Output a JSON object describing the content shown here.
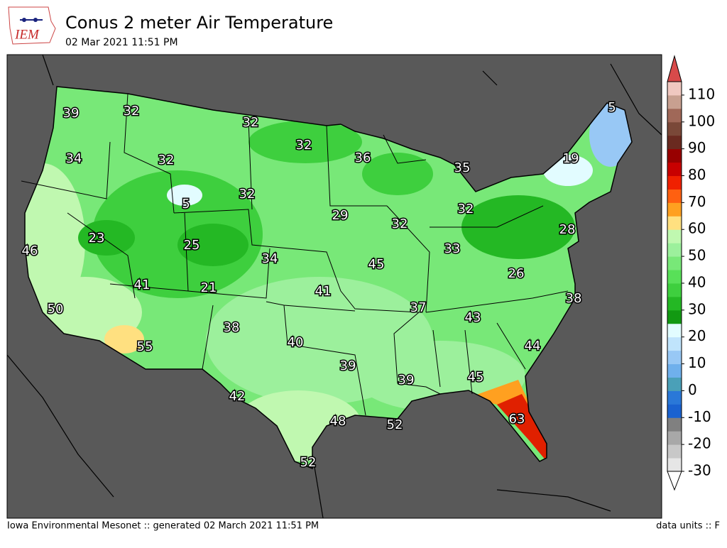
{
  "header": {
    "logo": "IEM",
    "title": "Conus 2 meter Air Temperature",
    "subtitle": "02 Mar 2021 11:51 PM"
  },
  "map": {
    "labels": [
      39,
      32,
      32,
      32,
      36,
      5,
      34,
      32,
      5,
      32,
      19,
      35,
      29,
      32,
      32,
      23,
      25,
      46,
      34,
      33,
      28,
      45,
      41,
      21,
      41,
      26,
      38,
      50,
      37,
      43,
      55,
      38,
      40,
      44,
      39,
      39,
      45,
      42,
      63,
      48,
      52,
      52
    ]
  },
  "colorbar": {
    "lim": [
      -30,
      115
    ],
    "step": 5,
    "ticks": [
      -30,
      -20,
      -10,
      0,
      10,
      20,
      30,
      40,
      50,
      60,
      70,
      80,
      90,
      100,
      110
    ],
    "colors": [
      "#e6e6e6",
      "#c8c8c8",
      "#a8a8a8",
      "#808080",
      "#1a62d0",
      "#2a78d8",
      "#4aa0b8",
      "#6fb0ec",
      "#98c8f5",
      "#c0e4fc",
      "#e2fcff",
      "#129912",
      "#24b824",
      "#3ecf3e",
      "#58e058",
      "#78e878",
      "#9cf09c",
      "#c0f8b0",
      "#ffe080",
      "#ffa020",
      "#ff6010",
      "#f02000",
      "#c80000",
      "#980000",
      "#6a2a20",
      "#7a4838",
      "#a06858",
      "#c8a090",
      "#f0c8c0",
      "#d84a4a"
    ]
  },
  "footer": {
    "left": "Iowa Environmental Mesonet :: generated 02 March 2021 11:51 PM",
    "right": "data units :: F"
  }
}
